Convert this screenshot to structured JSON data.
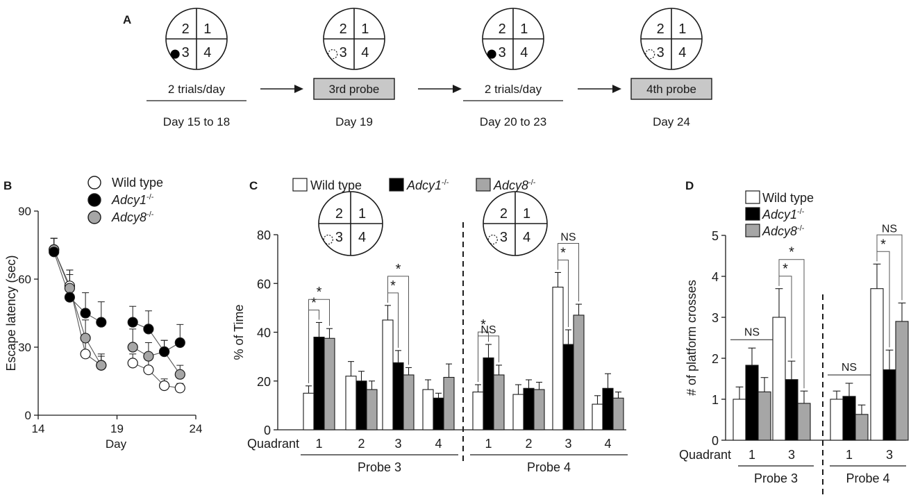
{
  "colors": {
    "wild_type": "#ffffff",
    "adcy1": "#000000",
    "adcy8": "#a6a6a6",
    "stroke": "#1a1a1a",
    "probe_box": "#c8c8c8"
  },
  "panel_a": {
    "letter": "A",
    "stages": [
      {
        "quadrants": [
          "2",
          "1",
          "3",
          "4"
        ],
        "marker": "platform",
        "label": "2 trials/day",
        "boxed": false,
        "day": "Day 15 to 18"
      },
      {
        "quadrants": [
          "2",
          "1",
          "3",
          "4"
        ],
        "marker": "removed",
        "label": "3rd probe",
        "boxed": true,
        "day": "Day 19"
      },
      {
        "quadrants": [
          "2",
          "1",
          "3",
          "4"
        ],
        "marker": "platform",
        "label": "2 trials/day",
        "boxed": false,
        "day": "Day 20 to 23"
      },
      {
        "quadrants": [
          "2",
          "1",
          "3",
          "4"
        ],
        "marker": "removed",
        "label": "4th probe",
        "boxed": true,
        "day": "Day 24"
      }
    ]
  },
  "chart_data": [
    {
      "panel": "B",
      "type": "line",
      "title": "",
      "xlabel": "Day",
      "ylabel": "Escape latency (sec)",
      "xlim": [
        14,
        24
      ],
      "ylim": [
        0,
        90
      ],
      "xticks": [
        "14",
        "19",
        "24"
      ],
      "yticks": [
        "0",
        "30",
        "60",
        "90"
      ],
      "legend": [
        {
          "name": "Wild type",
          "sup": ""
        },
        {
          "name": "Adcy1",
          "sup": "-/-"
        },
        {
          "name": "Adcy8",
          "sup": "-/-"
        }
      ],
      "series": [
        {
          "name": "Wild type",
          "segments": [
            [
              {
                "x": 15,
                "y": 73,
                "err": 5
              },
              {
                "x": 16,
                "y": 57,
                "err": 7
              },
              {
                "x": 17,
                "y": 27,
                "err": 7
              },
              {
                "x": 18,
                "y": 22,
                "err": 4
              }
            ],
            [
              {
                "x": 20,
                "y": 23,
                "err": 4
              },
              {
                "x": 21,
                "y": 20,
                "err": 5
              },
              {
                "x": 22,
                "y": 13,
                "err": 3
              },
              {
                "x": 23,
                "y": 12,
                "err": 2
              }
            ]
          ]
        },
        {
          "name": "Adcy8",
          "segments": [
            [
              {
                "x": 15,
                "y": 73,
                "err": 5
              },
              {
                "x": 16,
                "y": 56,
                "err": 8
              },
              {
                "x": 17,
                "y": 34,
                "err": 8
              },
              {
                "x": 18,
                "y": 22,
                "err": 5
              }
            ],
            [
              {
                "x": 20,
                "y": 30,
                "err": 8
              },
              {
                "x": 21,
                "y": 26,
                "err": 6
              },
              {
                "x": 22,
                "y": 28,
                "err": 5
              },
              {
                "x": 23,
                "y": 18,
                "err": 4
              }
            ]
          ]
        },
        {
          "name": "Adcy1",
          "segments": [
            [
              {
                "x": 15,
                "y": 72,
                "err": 6
              },
              {
                "x": 16,
                "y": 52,
                "err": 10
              },
              {
                "x": 17,
                "y": 45,
                "err": 9
              },
              {
                "x": 18,
                "y": 41,
                "err": 9
              }
            ],
            [
              {
                "x": 20,
                "y": 41,
                "err": 7
              },
              {
                "x": 21,
                "y": 38,
                "err": 8
              },
              {
                "x": 22,
                "y": 28,
                "err": 5
              },
              {
                "x": 23,
                "y": 32,
                "err": 8
              }
            ]
          ]
        }
      ]
    },
    {
      "panel": "C",
      "type": "bar",
      "title": "",
      "xlabel": "Quadrant",
      "ylabel": "% of Time",
      "ylim": [
        0,
        80
      ],
      "yticks": [
        "0",
        "20",
        "40",
        "60",
        "80"
      ],
      "legend": [
        {
          "name": "Wild type",
          "sup": ""
        },
        {
          "name": "Adcy1",
          "sup": "-/-"
        },
        {
          "name": "Adcy8",
          "sup": "-/-"
        }
      ],
      "groups": [
        {
          "label": "Probe 3",
          "categories": [
            "1",
            "2",
            "3",
            "4"
          ],
          "series": [
            {
              "name": "Wild type",
              "values": [
                15,
                22,
                45,
                16.5
              ],
              "errors": [
                3,
                6,
                6,
                4
              ]
            },
            {
              "name": "Adcy1",
              "values": [
                38,
                20,
                27.5,
                13
              ],
              "errors": [
                6,
                4,
                5,
                2
              ]
            },
            {
              "name": "Adcy8",
              "values": [
                37.5,
                16.5,
                22.5,
                21.5
              ],
              "errors": [
                4,
                3.5,
                3,
                5.5
              ]
            }
          ],
          "annotations": [
            {
              "category": "1",
              "from": "Wild type",
              "to": "Adcy1",
              "label": "*"
            },
            {
              "category": "1",
              "from": "Wild type",
              "to": "Adcy8",
              "label": "*"
            },
            {
              "category": "3",
              "from": "Wild type",
              "to": "Adcy1",
              "label": "*"
            },
            {
              "category": "3",
              "from": "Wild type",
              "to": "Adcy8",
              "label": "*"
            }
          ]
        },
        {
          "label": "Probe 4",
          "categories": [
            "1",
            "2",
            "3",
            "4"
          ],
          "series": [
            {
              "name": "Wild type",
              "values": [
                15.5,
                14.5,
                58.5,
                10.5
              ],
              "errors": [
                3,
                4,
                6,
                3.5
              ]
            },
            {
              "name": "Adcy1",
              "values": [
                29.5,
                17,
                35,
                17
              ],
              "errors": [
                5.5,
                3.5,
                6,
                6
              ]
            },
            {
              "name": "Adcy8",
              "values": [
                22.5,
                16.5,
                47,
                13
              ],
              "errors": [
                4,
                3,
                4.5,
                2.5
              ]
            }
          ],
          "annotations": [
            {
              "category": "1",
              "from": "Wild type",
              "to": "Adcy1",
              "label": "*"
            },
            {
              "category": "1",
              "from": "Wild type",
              "to": "Adcy8",
              "label": "NS"
            },
            {
              "category": "3",
              "from": "Wild type",
              "to": "Adcy1",
              "label": "*"
            },
            {
              "category": "3",
              "from": "Wild type",
              "to": "Adcy8",
              "label": "NS"
            }
          ]
        }
      ],
      "quadrant_diagram": {
        "quadrants": [
          "2",
          "1",
          "3",
          "4"
        ],
        "marker": "removed"
      }
    },
    {
      "panel": "D",
      "type": "bar",
      "title": "",
      "xlabel": "Quadrant",
      "ylabel": "# of platform crosses",
      "ylim": [
        0,
        5
      ],
      "yticks": [
        "0",
        "1",
        "2",
        "3",
        "4",
        "5"
      ],
      "legend": [
        {
          "name": "Wild type",
          "sup": ""
        },
        {
          "name": "Adcy1",
          "sup": "-/-"
        },
        {
          "name": "Adcy8",
          "sup": "-/-"
        }
      ],
      "groups": [
        {
          "label": "Probe 3",
          "categories": [
            "1",
            "3"
          ],
          "series": [
            {
              "name": "Wild type",
              "values": [
                1,
                3
              ],
              "errors": [
                0.3,
                0.7
              ]
            },
            {
              "name": "Adcy1",
              "values": [
                1.83,
                1.48
              ],
              "errors": [
                0.42,
                0.45
              ]
            },
            {
              "name": "Adcy8",
              "values": [
                1.18,
                0.9
              ],
              "errors": [
                0.35,
                0.3
              ]
            }
          ],
          "annotations": [
            {
              "category": "1",
              "span": "group",
              "label": "NS"
            },
            {
              "category": "3",
              "from": "Wild type",
              "to": "Adcy1",
              "label": "*"
            },
            {
              "category": "3",
              "from": "Wild type",
              "to": "Adcy8",
              "label": "*"
            }
          ]
        },
        {
          "label": "Probe 4",
          "categories": [
            "1",
            "3"
          ],
          "series": [
            {
              "name": "Wild type",
              "values": [
                1,
                3.7
              ],
              "errors": [
                0.2,
                0.6
              ]
            },
            {
              "name": "Adcy1",
              "values": [
                1.07,
                1.72
              ],
              "errors": [
                0.32,
                0.48
              ]
            },
            {
              "name": "Adcy8",
              "values": [
                0.63,
                2.9
              ],
              "errors": [
                0.23,
                0.45
              ]
            }
          ],
          "annotations": [
            {
              "category": "1",
              "span": "group",
              "label": "NS"
            },
            {
              "category": "3",
              "from": "Wild type",
              "to": "Adcy1",
              "label": "*"
            },
            {
              "category": "3",
              "from": "Wild type",
              "to": "Adcy8",
              "label": "NS"
            }
          ]
        }
      ]
    }
  ]
}
